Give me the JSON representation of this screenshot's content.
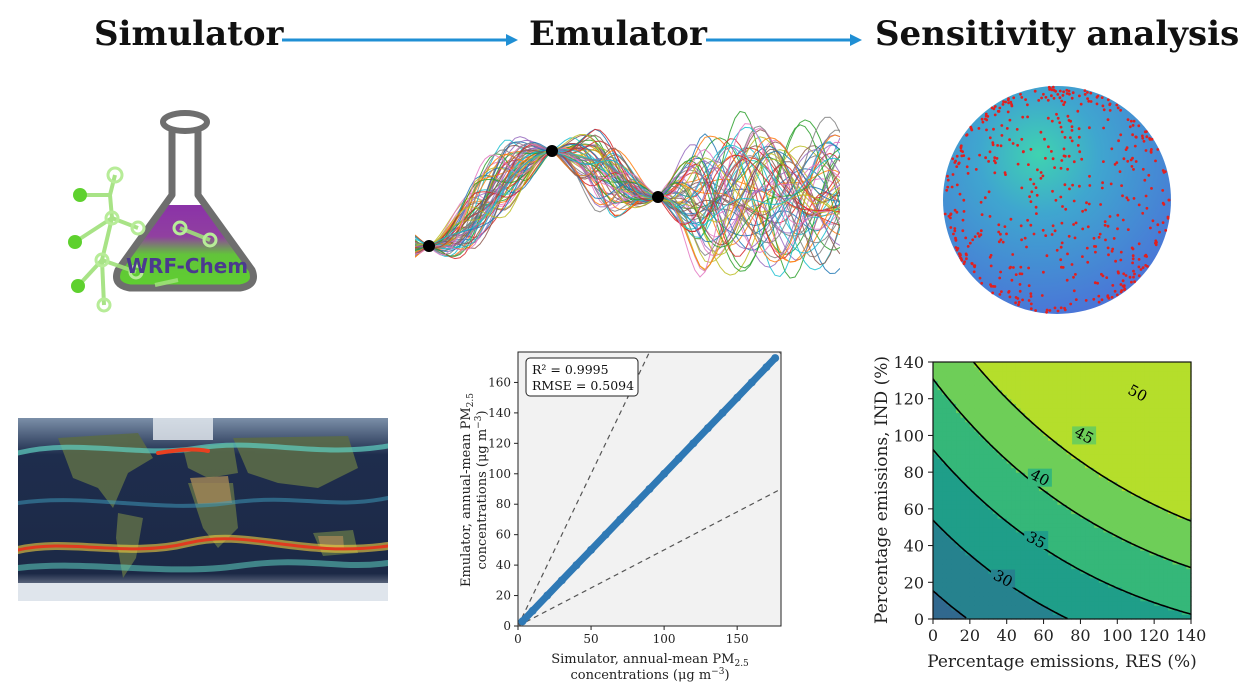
{
  "headings": {
    "simulator": "Simulator",
    "emulator": "Emulator",
    "sensitivity": "Sensitivity analysis"
  },
  "logo": {
    "text": "WRF-Chem"
  },
  "emulator_scatter": {
    "stats": {
      "r2": "R² = 0.9995",
      "rmse": "RMSE = 0.5094"
    },
    "xlabel_line1": "Simulator, annual-mean PM",
    "xlabel_sub": "2.5",
    "xlabel_line2": "concentrations (μg m",
    "ylabel_line1": "Emulator, annual-mean PM",
    "ylabel_sub": "2.5",
    "ylabel_line2": "concentrations (μg m"
  },
  "contour": {
    "xlabel": "Percentage emissions, RES (%)",
    "ylabel": "Percentage emissions, IND (%)"
  },
  "chart_data": [
    {
      "type": "scatter",
      "title": "",
      "xlabel": "Simulator, annual-mean PM2.5 concentrations (μg m-3)",
      "ylabel": "Emulator, annual-mean PM2.5 concentrations (μg m-3)",
      "xlim": [
        0,
        180
      ],
      "ylim": [
        0,
        180
      ],
      "xticks": [
        0,
        50,
        100,
        150
      ],
      "yticks": [
        0,
        20,
        40,
        60,
        80,
        100,
        120,
        140,
        160
      ],
      "series": [
        {
          "x": [
            3,
            10,
            20,
            30,
            40,
            50,
            60,
            70,
            80,
            90,
            100,
            110,
            120,
            130,
            140,
            150,
            160,
            170,
            176
          ],
          "y": [
            3,
            10,
            20,
            30,
            40,
            50,
            60,
            70,
            80,
            90,
            100,
            110,
            120,
            130,
            140,
            150,
            160,
            170,
            176
          ]
        }
      ],
      "reference_lines": [
        {
          "slope": 2
        },
        {
          "slope": 1
        },
        {
          "slope": 0.5
        }
      ],
      "color": "#2f79b5",
      "grid": false
    },
    {
      "type": "heatmap",
      "subtype": "contour",
      "xlabel": "Percentage emissions, RES (%)",
      "ylabel": "Percentage emissions, IND (%)",
      "xlim": [
        0,
        140
      ],
      "ylim": [
        0,
        140
      ],
      "xticks": [
        0,
        20,
        40,
        60,
        80,
        100,
        120,
        140
      ],
      "yticks": [
        0,
        20,
        40,
        60,
        80,
        100,
        120,
        140
      ],
      "contour_levels": [
        25,
        30,
        35,
        40,
        45,
        50
      ],
      "labeled_levels": [
        {
          "value": 30,
          "x": 38,
          "y": 22
        },
        {
          "value": 35,
          "x": 56,
          "y": 43
        },
        {
          "value": 40,
          "x": 58,
          "y": 77
        },
        {
          "value": 45,
          "x": 82,
          "y": 100
        },
        {
          "value": 50,
          "x": 111,
          "y": 123
        }
      ],
      "colormap": [
        "#3e4a89",
        "#31688e",
        "#26828e",
        "#1f9e89",
        "#35b779",
        "#6ece58",
        "#b5de2b"
      ]
    }
  ],
  "colors": {
    "arrow": "#1f8fd4",
    "scatter": "#2f79b5",
    "sphere": "#4a8fd6",
    "sphere_points": "#e02020",
    "flask_purple": "#8b32a8",
    "flask_green": "#5ed12e"
  }
}
